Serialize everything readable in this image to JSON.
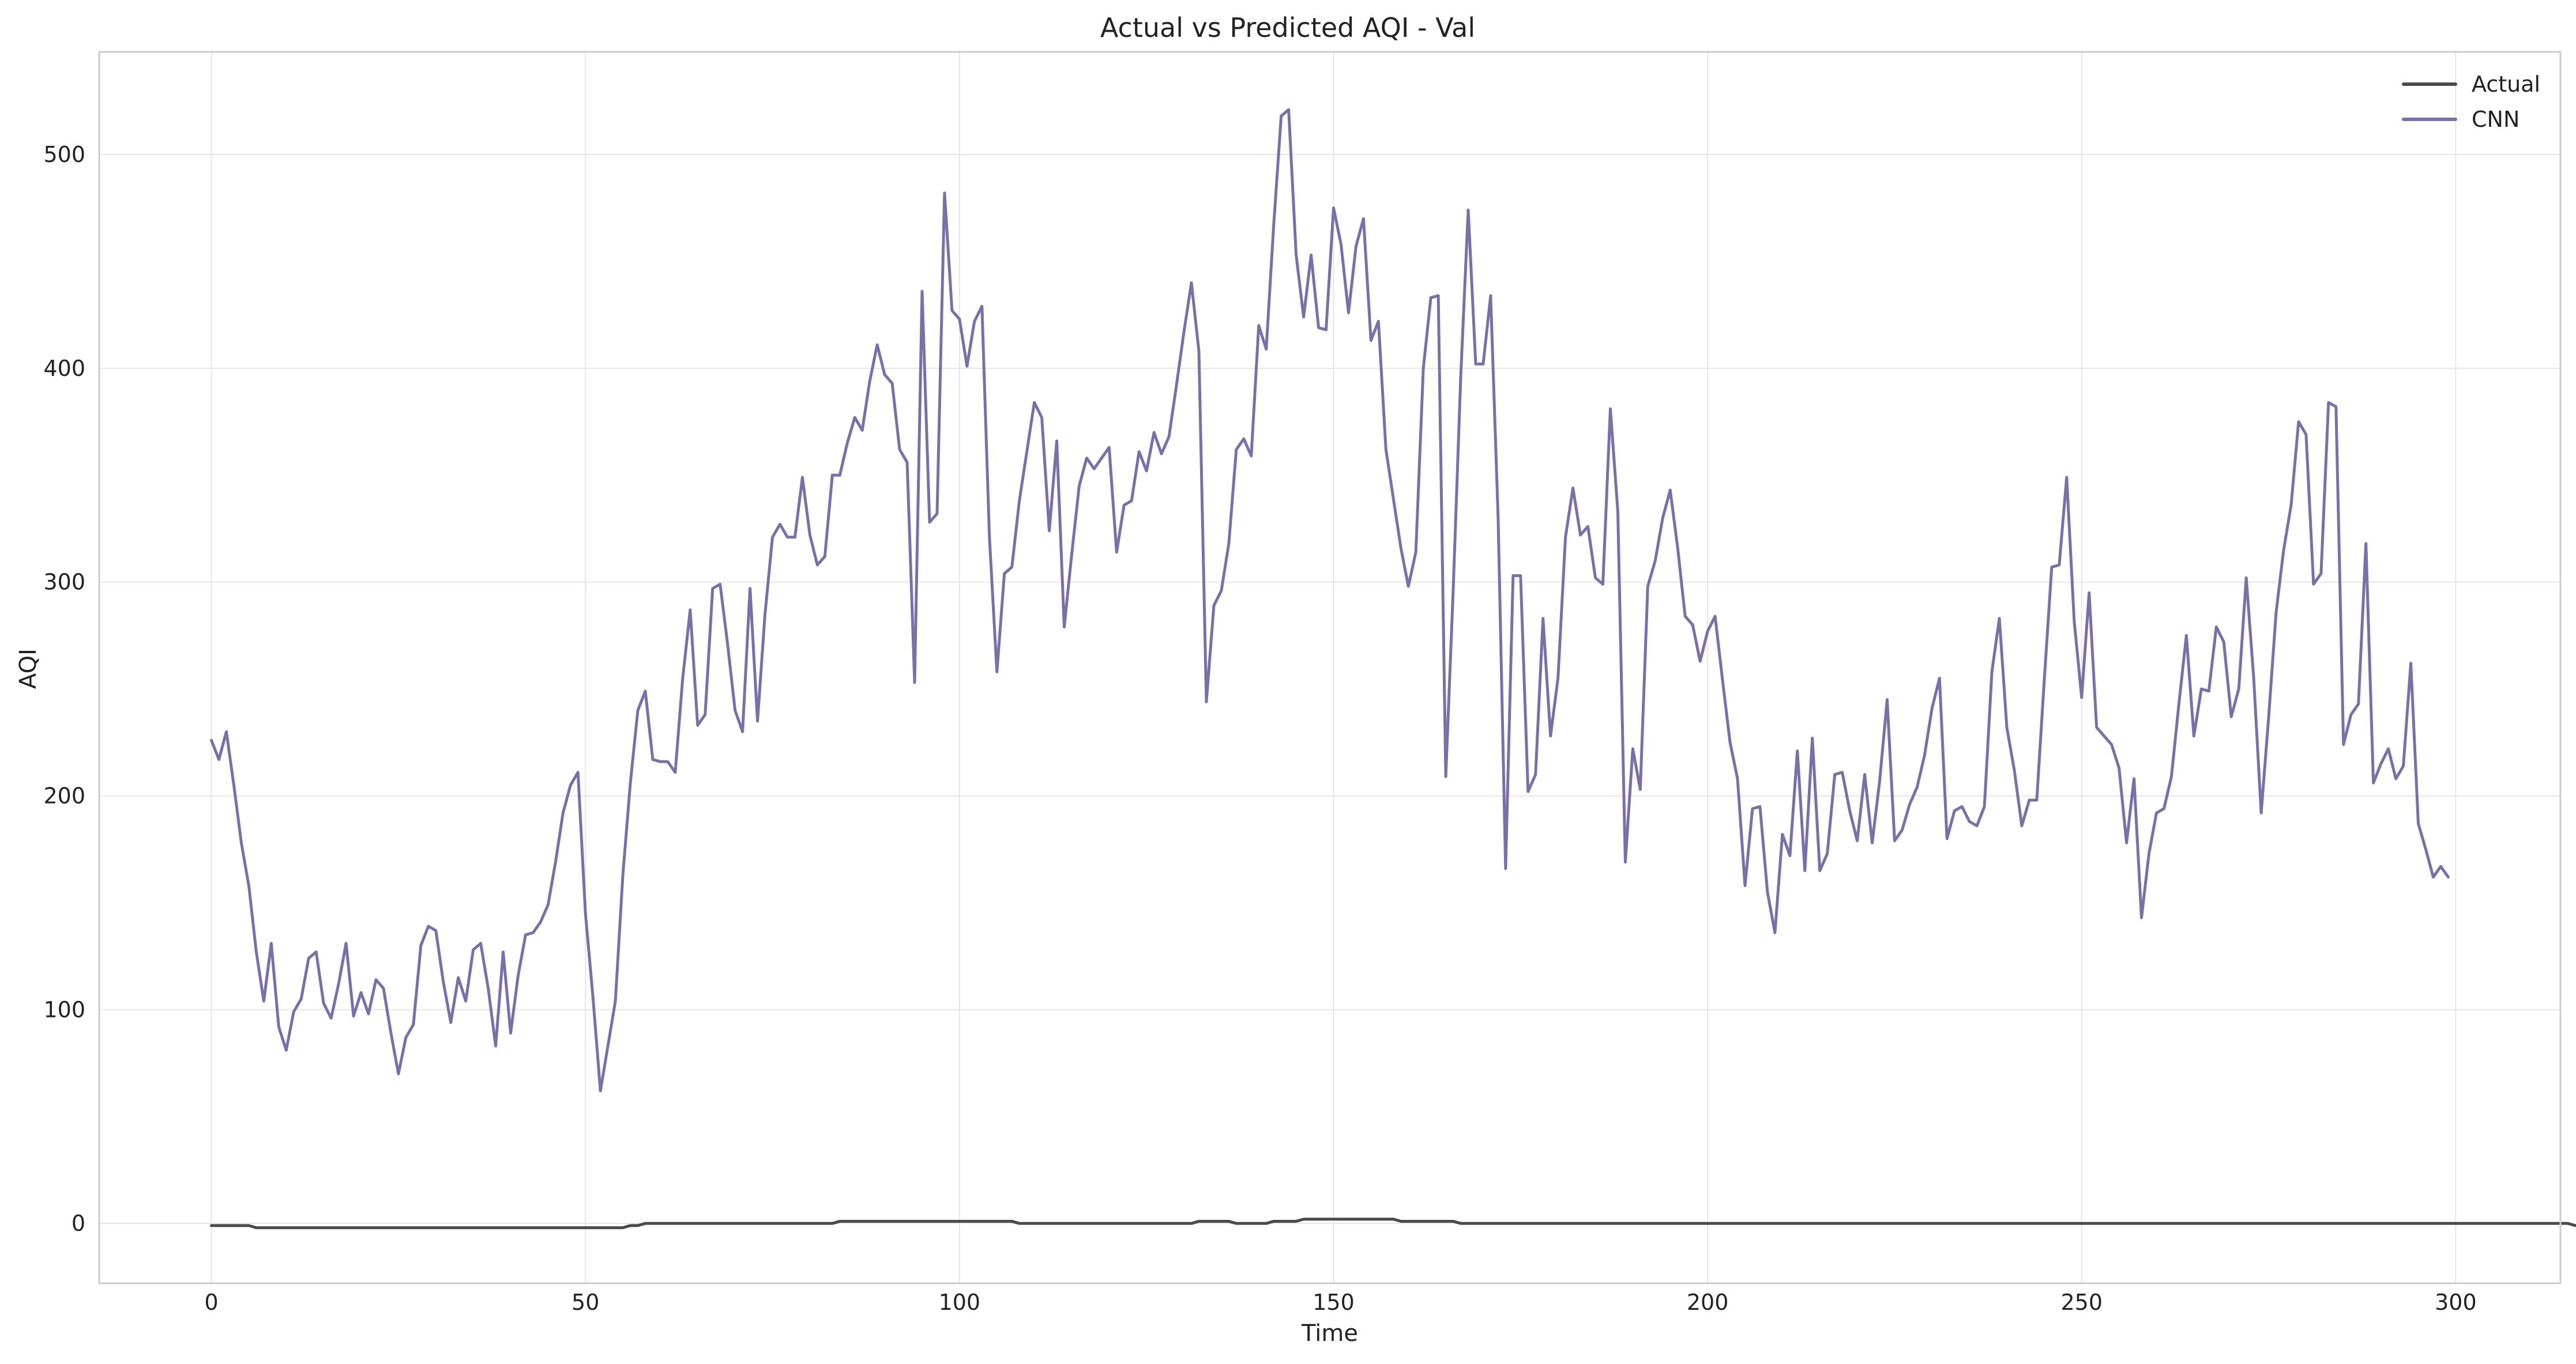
{
  "chart_data": {
    "type": "line",
    "title": "Actual vs Predicted AQI - Val",
    "xlabel": "Time",
    "ylabel": "AQI",
    "xlim": [
      -15,
      314
    ],
    "ylim": [
      -28,
      548
    ],
    "xticks": [
      0,
      50,
      100,
      150,
      200,
      250,
      300
    ],
    "yticks": [
      0,
      100,
      200,
      300,
      400,
      500
    ],
    "grid": true,
    "legend_position": "top-right",
    "series": [
      {
        "name": "Actual",
        "color": "#4a4a4a",
        "values": [
          -1,
          -1,
          -1,
          -1,
          -1,
          -1,
          -2,
          -2,
          -2,
          -2,
          -2,
          -2,
          -2,
          -2,
          -2,
          -2,
          -2,
          -2,
          -2,
          -2,
          -2,
          -2,
          -2,
          -2,
          -2,
          -2,
          -2,
          -2,
          -2,
          -2,
          -2,
          -2,
          -2,
          -2,
          -2,
          -2,
          -2,
          -2,
          -2,
          -2,
          -2,
          -2,
          -2,
          -2,
          -2,
          -2,
          -2,
          -2,
          -2,
          -2,
          -2,
          -2,
          -2,
          -2,
          -2,
          -2,
          -1,
          -1,
          0,
          0,
          0,
          0,
          0,
          0,
          0,
          0,
          0,
          0,
          0,
          0,
          0,
          0,
          0,
          0,
          0,
          0,
          0,
          0,
          0,
          0,
          0,
          0,
          0,
          0,
          1,
          1,
          1,
          1,
          1,
          1,
          1,
          1,
          1,
          1,
          1,
          1,
          1,
          1,
          1,
          1,
          1,
          1,
          1,
          1,
          1,
          1,
          1,
          1,
          0,
          0,
          0,
          0,
          0,
          0,
          0,
          0,
          0,
          0,
          0,
          0,
          0,
          0,
          0,
          0,
          0,
          0,
          0,
          0,
          0,
          0,
          0,
          0,
          1,
          1,
          1,
          1,
          1,
          0,
          0,
          0,
          0,
          0,
          1,
          1,
          1,
          1,
          2,
          2,
          2,
          2,
          2,
          2,
          2,
          2,
          2,
          2,
          2,
          2,
          2,
          1,
          1,
          1,
          1,
          1,
          1,
          1,
          1,
          0,
          0,
          0,
          0,
          0,
          0,
          0,
          0,
          0,
          0,
          0,
          0,
          0,
          0,
          0,
          0,
          0,
          0,
          0,
          0,
          0,
          0,
          0,
          0,
          0,
          0,
          0,
          0,
          0,
          0,
          0,
          0,
          0,
          0,
          0,
          0,
          0,
          0,
          0,
          0,
          0,
          0,
          0,
          0,
          0,
          0,
          0,
          0,
          0,
          0,
          0,
          0,
          0,
          0,
          0,
          0,
          0,
          0,
          0,
          0,
          0,
          0,
          0,
          0,
          0,
          0,
          0,
          0,
          0,
          0,
          0,
          0,
          0,
          0,
          0,
          0,
          0,
          0,
          0,
          0,
          0,
          0,
          0,
          0,
          0,
          0,
          0,
          0,
          0,
          0,
          0,
          0,
          0,
          0,
          0,
          0,
          0,
          0,
          0,
          0,
          0,
          0,
          0,
          0,
          0,
          0,
          0,
          0,
          0,
          0,
          0,
          0,
          0,
          0,
          0,
          0,
          0,
          0,
          0,
          0,
          0,
          0,
          0,
          0,
          0,
          0,
          0,
          0,
          0,
          0,
          0,
          0,
          0,
          0,
          0,
          0,
          0,
          0,
          0,
          0,
          0,
          0,
          0,
          0,
          0,
          0,
          0,
          0,
          0,
          -1,
          -1,
          -1
        ]
      },
      {
        "name": "CNN",
        "color": "#7b6fa8",
        "values": [
          226,
          217,
          230,
          205,
          178,
          158,
          127,
          104,
          131,
          92,
          81,
          99,
          105,
          124,
          127,
          103,
          96,
          112,
          131,
          97,
          108,
          98,
          114,
          110,
          89,
          70,
          87,
          93,
          130,
          139,
          137,
          113,
          94,
          115,
          104,
          128,
          131,
          110,
          83,
          127,
          89,
          116,
          135,
          136,
          141,
          149,
          169,
          192,
          205,
          211,
          145,
          106,
          62,
          83,
          104,
          163,
          206,
          240,
          249,
          217,
          216,
          216,
          211,
          255,
          287,
          233,
          238,
          297,
          299,
          271,
          240,
          230,
          297,
          235,
          285,
          321,
          327,
          321,
          321,
          349,
          322,
          308,
          312,
          350,
          350,
          365,
          377,
          371,
          394,
          411,
          397,
          393,
          362,
          356,
          253,
          436,
          328,
          332,
          482,
          427,
          423,
          401,
          422,
          429,
          321,
          258,
          304,
          307,
          338,
          361,
          384,
          377,
          324,
          366,
          279,
          313,
          345,
          358,
          353,
          358,
          363,
          314,
          336,
          338,
          361,
          352,
          370,
          360,
          368,
          392,
          417,
          440,
          408,
          244,
          289,
          296,
          318,
          362,
          367,
          359,
          420,
          409,
          467,
          518,
          521,
          453,
          424,
          453,
          419,
          418,
          475,
          458,
          426,
          457,
          470,
          413,
          422,
          362,
          339,
          316,
          298,
          314,
          400,
          433,
          434,
          209,
          297,
          396,
          474,
          402,
          402,
          434,
          330,
          166,
          303,
          303,
          202,
          210,
          283,
          228,
          255,
          321,
          344,
          322,
          326,
          302,
          299,
          381,
          333,
          169,
          222,
          203,
          298,
          310,
          330,
          343,
          316,
          284,
          280,
          263,
          277,
          284,
          254,
          225,
          208,
          158,
          194,
          195,
          155,
          136,
          182,
          172,
          221,
          165,
          227,
          165,
          173,
          210,
          211,
          193,
          179,
          210,
          178,
          207,
          245,
          179,
          184,
          196,
          204,
          219,
          241,
          255,
          180,
          193,
          195,
          188,
          186,
          195,
          258,
          283,
          232,
          212,
          186,
          198,
          198,
          254,
          307,
          308,
          349,
          282,
          246,
          295,
          232,
          228,
          224,
          213,
          178,
          208,
          143,
          173,
          192,
          194,
          209,
          243,
          275,
          228,
          250,
          249,
          279,
          272,
          237,
          250,
          302,
          255,
          192,
          237,
          286,
          315,
          336,
          375,
          369,
          299,
          304,
          384,
          382,
          224,
          238,
          243,
          318,
          206,
          215,
          222,
          208,
          214,
          262,
          187,
          175,
          162,
          167,
          162
        ]
      }
    ]
  }
}
